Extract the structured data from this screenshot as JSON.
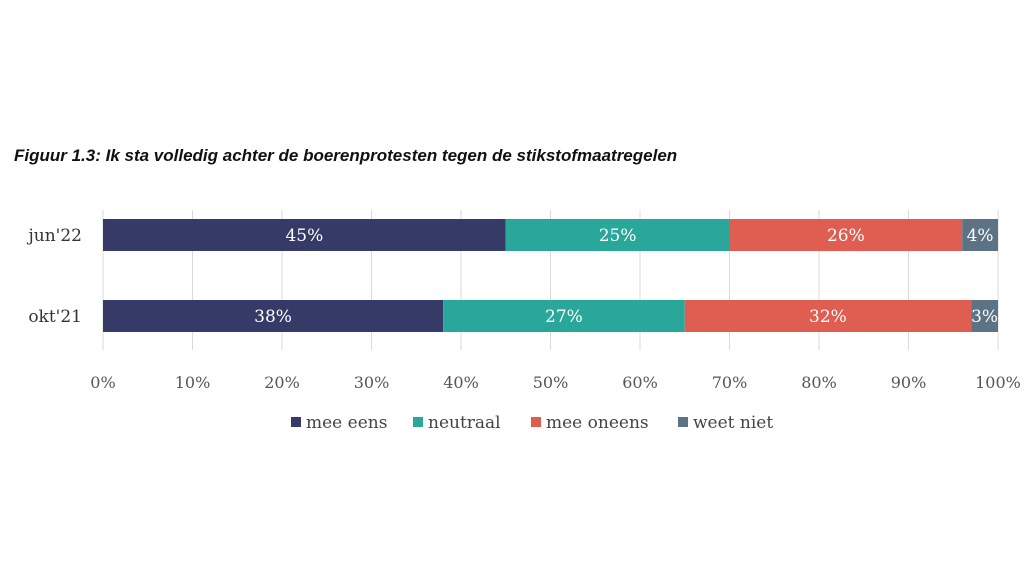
{
  "chart_data": {
    "type": "bar",
    "orientation": "horizontal",
    "stacked": true,
    "title": "Figuur 1.3: Ik sta volledig achter de boerenprotesten tegen de stikstofmaatregelen",
    "categories": [
      "jun'22",
      "okt'21"
    ],
    "series": [
      {
        "name": "mee eens",
        "color": "#363a66",
        "values": [
          45,
          38
        ],
        "labels": [
          "45%",
          "38%"
        ]
      },
      {
        "name": "neutraal",
        "color": "#2aa79b",
        "values": [
          25,
          27
        ],
        "labels": [
          "25%",
          "27%"
        ]
      },
      {
        "name": "mee oneens",
        "color": "#e05d52",
        "values": [
          26,
          32
        ],
        "labels": [
          "26%",
          "32%"
        ]
      },
      {
        "name": "weet niet",
        "color": "#5b7385",
        "values": [
          4,
          3
        ],
        "labels": [
          "4%",
          "3%"
        ]
      }
    ],
    "xlim": [
      0,
      100
    ],
    "x_ticks": [
      "0%",
      "10%",
      "20%",
      "30%",
      "40%",
      "50%",
      "60%",
      "70%",
      "80%",
      "90%",
      "100%"
    ],
    "grid": true,
    "legend_position": "bottom"
  }
}
